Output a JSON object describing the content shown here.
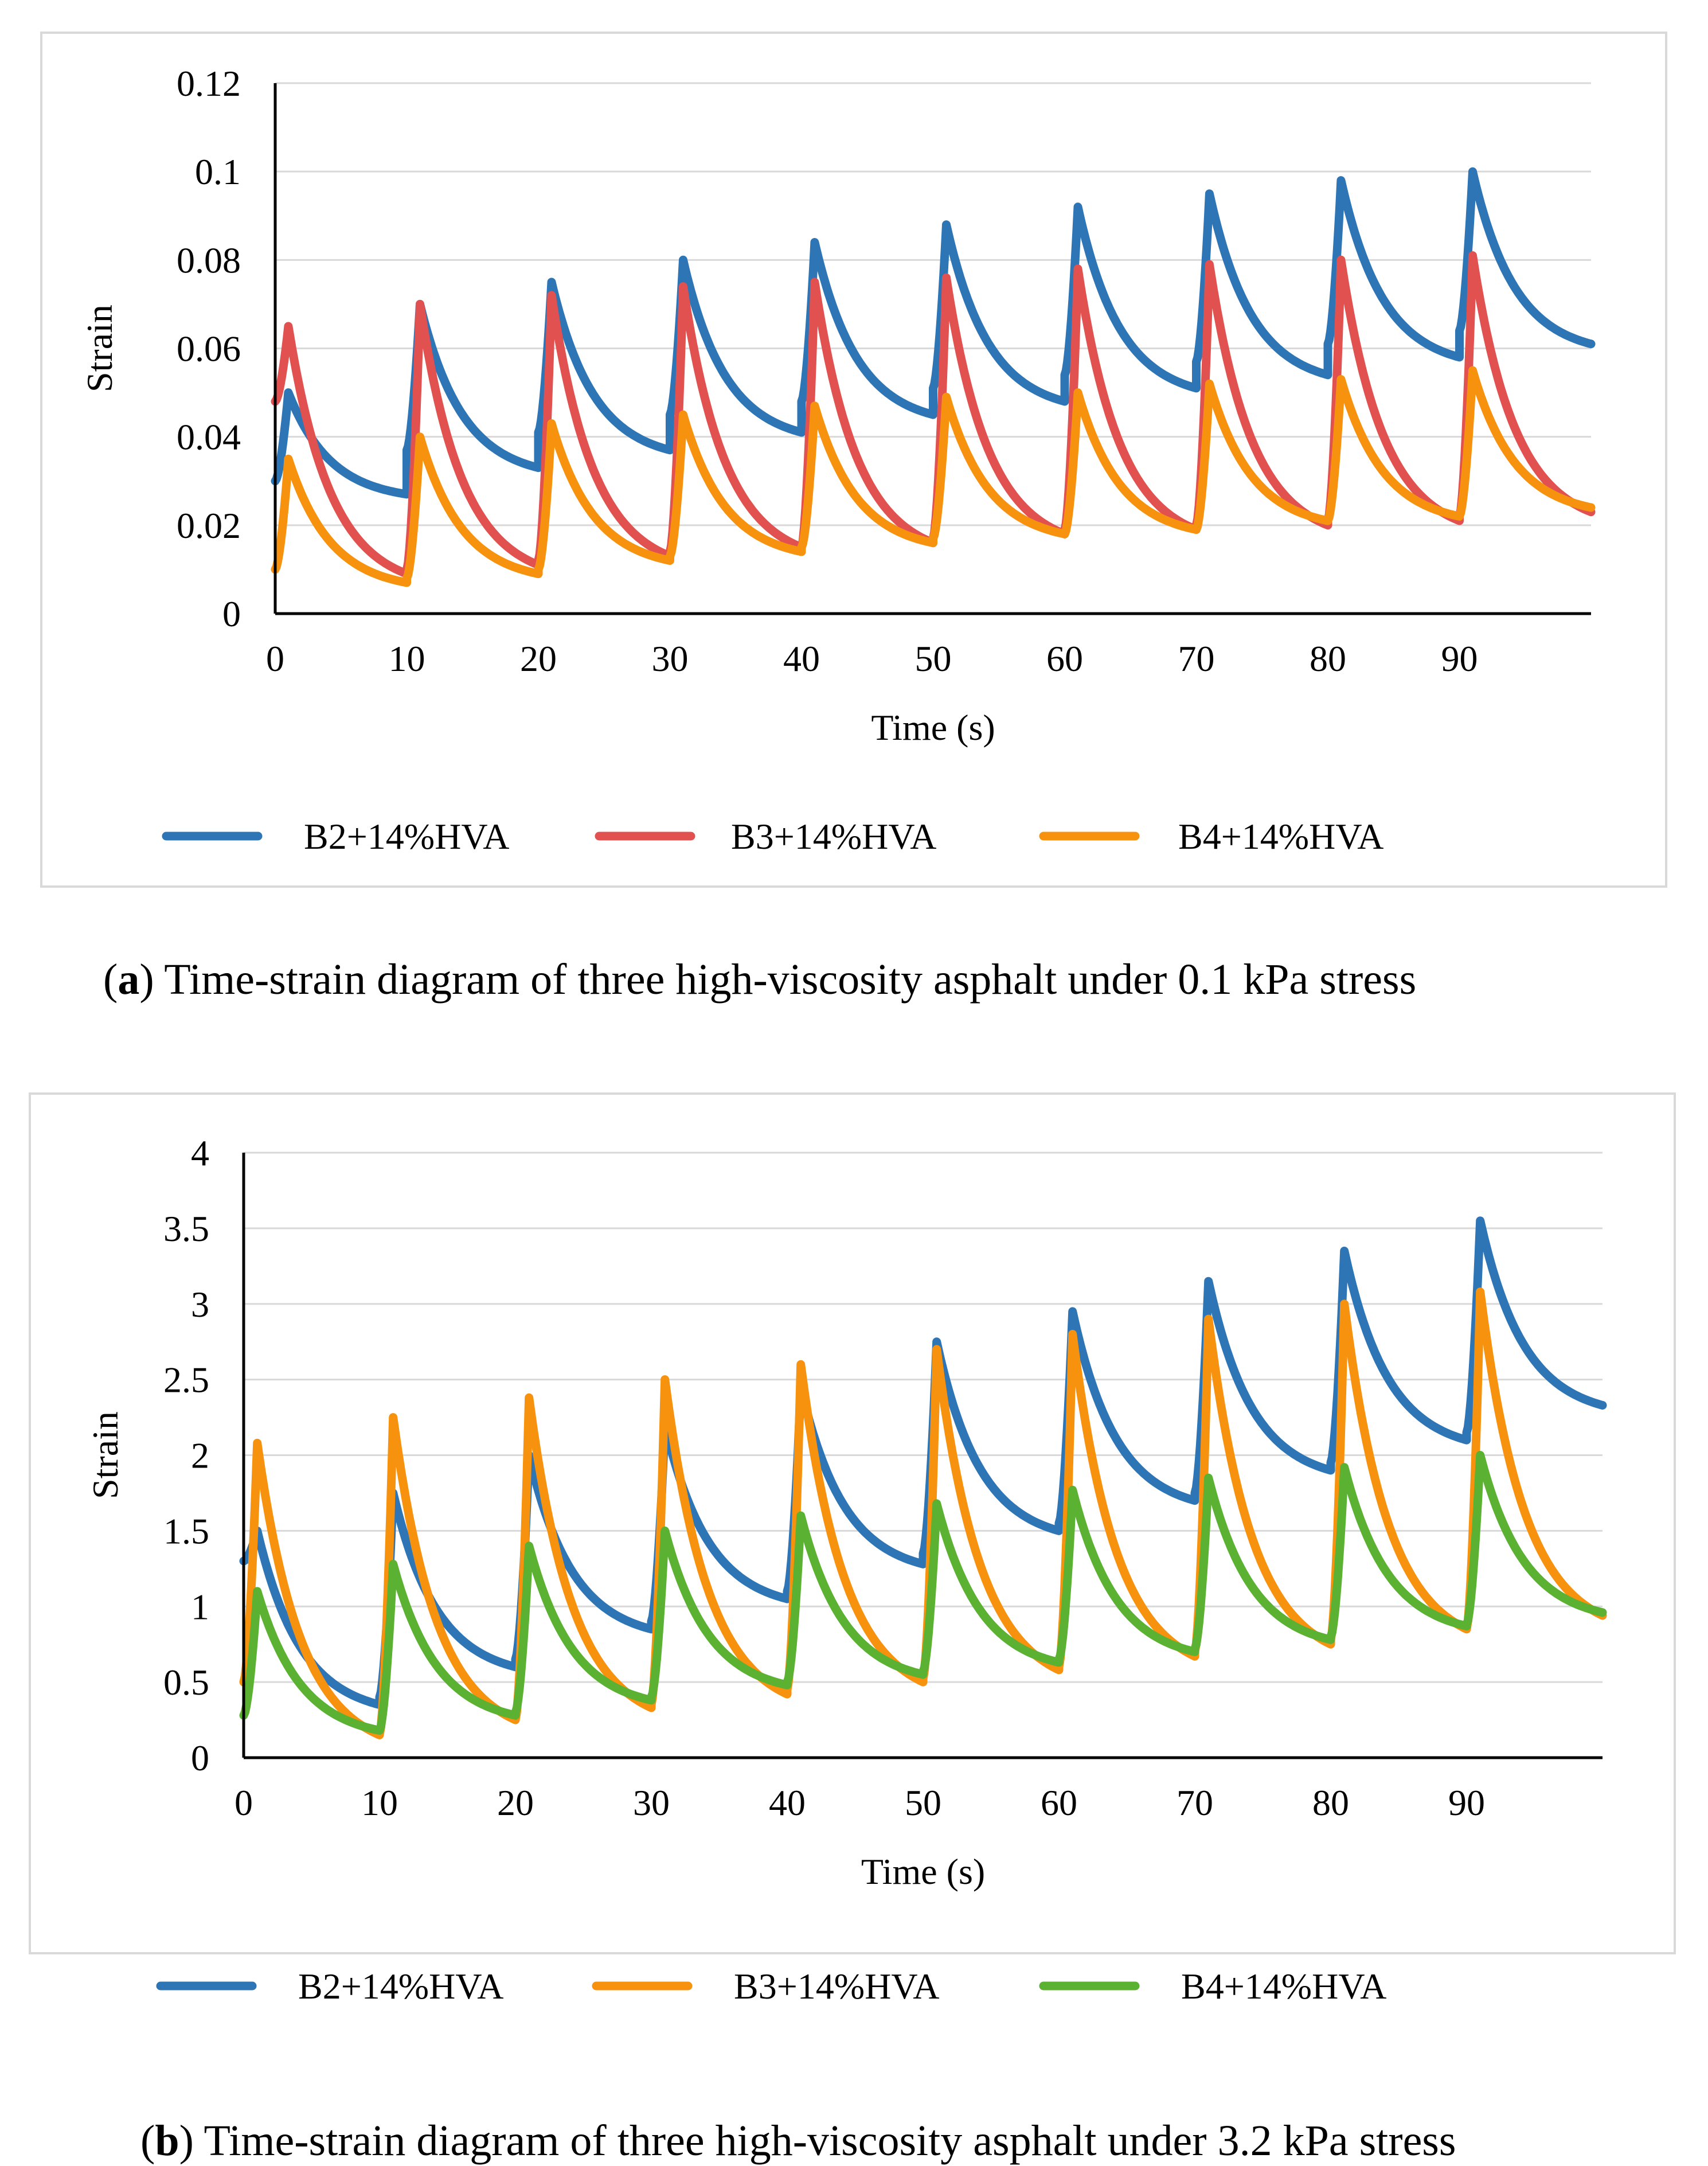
{
  "chart_data": [
    {
      "type": "line",
      "panel": "a",
      "title": "",
      "xlabel": "Time (s)",
      "ylabel": "Strain",
      "xlim": [
        0,
        100
      ],
      "ylim": [
        0,
        0.12
      ],
      "xticks": [
        "0",
        "10",
        "20",
        "30",
        "40",
        "50",
        "60",
        "70",
        "80",
        "90"
      ],
      "yticks": [
        "0",
        "0.02",
        "0.04",
        "0.06",
        "0.08",
        "0.1",
        "0.12"
      ],
      "grid": "horizontal",
      "legend": "bottom",
      "caption_label": "a",
      "caption_text": "Time-strain diagram of three high-viscosity asphalt under 0.1 kPa stress",
      "cycle": {
        "period_s": 10,
        "load_s": 1
      },
      "series": [
        {
          "name": "B2+14%HVA",
          "color": "#2e75b6",
          "start": [
            0.03,
            0.037,
            0.041,
            0.045,
            0.048,
            0.051,
            0.054,
            0.057,
            0.061,
            0.064
          ],
          "peak": [
            0.05,
            0.07,
            0.075,
            0.08,
            0.084,
            0.088,
            0.092,
            0.095,
            0.098,
            0.1
          ],
          "end": [
            0.027,
            0.033,
            0.037,
            0.041,
            0.045,
            0.048,
            0.051,
            0.054,
            0.058,
            0.061
          ]
        },
        {
          "name": "B3+14%HVA",
          "color": "#e0514f",
          "start": [
            0.048,
            0.01,
            0.012,
            0.014,
            0.015,
            0.017,
            0.019,
            0.02,
            0.021,
            0.022
          ],
          "peak": [
            0.065,
            0.07,
            0.072,
            0.074,
            0.075,
            0.076,
            0.078,
            0.079,
            0.08,
            0.081
          ],
          "end": [
            0.009,
            0.011,
            0.013,
            0.015,
            0.016,
            0.018,
            0.019,
            0.02,
            0.021,
            0.023
          ]
        },
        {
          "name": "B4+14%HVA",
          "color": "#f7920f",
          "start": [
            0.01,
            0.008,
            0.01,
            0.013,
            0.015,
            0.017,
            0.018,
            0.019,
            0.021,
            0.022
          ],
          "peak": [
            0.035,
            0.04,
            0.043,
            0.045,
            0.047,
            0.049,
            0.05,
            0.052,
            0.053,
            0.055
          ],
          "end": [
            0.007,
            0.009,
            0.012,
            0.014,
            0.016,
            0.018,
            0.019,
            0.021,
            0.022,
            0.024
          ]
        }
      ]
    },
    {
      "type": "line",
      "panel": "b",
      "title": "",
      "xlabel": "Time (s)",
      "ylabel": "Strain",
      "xlim": [
        0,
        100
      ],
      "ylim": [
        0,
        4
      ],
      "xticks": [
        "0",
        "10",
        "20",
        "30",
        "40",
        "50",
        "60",
        "70",
        "80",
        "90"
      ],
      "yticks": [
        "0",
        "0.5",
        "1",
        "1.5",
        "2",
        "2.5",
        "3",
        "3.5",
        "4"
      ],
      "grid": "horizontal",
      "legend": "bottom",
      "caption_label": "b",
      "caption_text": "Time-strain diagram of three high-viscosity asphalt under 3.2 kPa stress",
      "cycle": {
        "period_s": 10,
        "load_s": 1
      },
      "series": [
        {
          "name": "B2+14%HVA",
          "color": "#2e75b6",
          "start": [
            1.3,
            0.4,
            0.65,
            0.9,
            1.1,
            1.35,
            1.55,
            1.75,
            1.95,
            2.15
          ],
          "peak": [
            1.5,
            1.75,
            2.0,
            2.2,
            2.45,
            2.75,
            2.95,
            3.15,
            3.35,
            3.55
          ],
          "end": [
            0.35,
            0.6,
            0.85,
            1.05,
            1.28,
            1.5,
            1.7,
            1.9,
            2.1,
            2.33
          ]
        },
        {
          "name": "B3+14%HVA",
          "color": "#f7920f",
          "start": [
            0.5,
            0.15,
            0.25,
            0.35,
            0.45,
            0.52,
            0.6,
            0.7,
            0.78,
            0.85
          ],
          "peak": [
            2.08,
            2.25,
            2.38,
            2.5,
            2.6,
            2.7,
            2.8,
            2.9,
            3.0,
            3.08
          ],
          "end": [
            0.15,
            0.25,
            0.33,
            0.42,
            0.5,
            0.58,
            0.67,
            0.75,
            0.85,
            0.94
          ]
        },
        {
          "name": "B4+14%HVA",
          "color": "#5bb132",
          "start": [
            0.28,
            0.18,
            0.3,
            0.4,
            0.5,
            0.57,
            0.65,
            0.72,
            0.8,
            0.88
          ],
          "peak": [
            1.1,
            1.28,
            1.4,
            1.5,
            1.6,
            1.68,
            1.77,
            1.85,
            1.92,
            2.0
          ],
          "end": [
            0.18,
            0.28,
            0.38,
            0.48,
            0.55,
            0.63,
            0.7,
            0.78,
            0.87,
            0.96
          ]
        }
      ]
    }
  ]
}
